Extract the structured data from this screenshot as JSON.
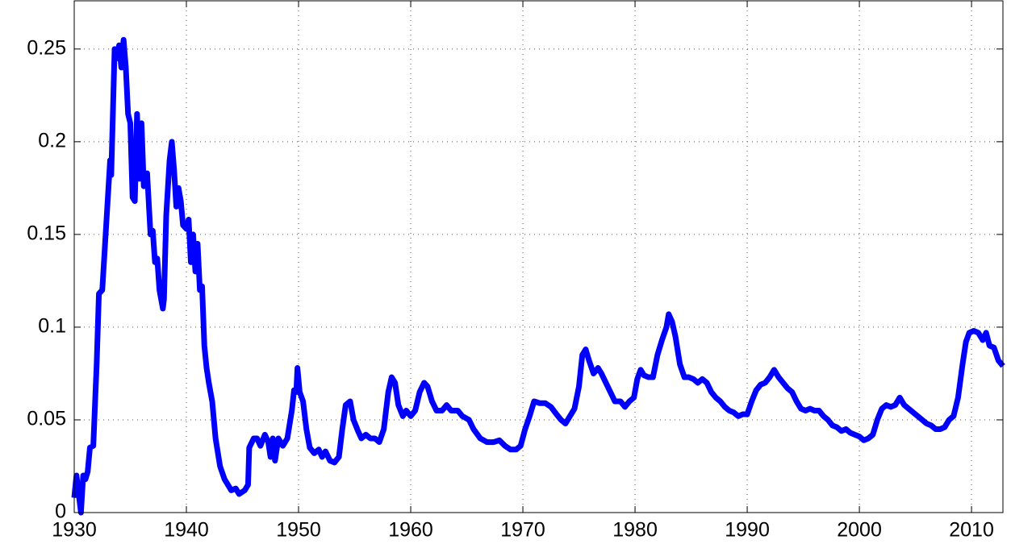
{
  "chart_data": {
    "type": "line",
    "x": [
      1930.0,
      1930.2,
      1930.4,
      1930.6,
      1930.8,
      1931.0,
      1931.2,
      1931.4,
      1931.7,
      1932.0,
      1932.2,
      1932.5,
      1932.8,
      1933.0,
      1933.2,
      1933.3,
      1933.6,
      1933.8,
      1934.0,
      1934.2,
      1934.4,
      1934.6,
      1934.8,
      1935.0,
      1935.2,
      1935.4,
      1935.6,
      1935.8,
      1936.0,
      1936.2,
      1936.5,
      1936.8,
      1937.0,
      1937.2,
      1937.4,
      1937.6,
      1937.9,
      1938.0,
      1938.2,
      1938.5,
      1938.7,
      1938.9,
      1939.1,
      1939.3,
      1939.5,
      1939.7,
      1940.0,
      1940.2,
      1940.4,
      1940.6,
      1940.8,
      1941.0,
      1941.2,
      1941.4,
      1941.6,
      1941.8,
      1942.0,
      1942.3,
      1942.6,
      1943.0,
      1943.4,
      1944.0,
      1944.4,
      1944.7,
      1945.2,
      1945.5,
      1945.6,
      1946.0,
      1946.3,
      1946.6,
      1947.0,
      1947.3,
      1947.5,
      1947.7,
      1947.9,
      1948.2,
      1948.6,
      1949.0,
      1949.4,
      1949.6,
      1949.8,
      1949.9,
      1950.1,
      1950.4,
      1950.7,
      1951.0,
      1951.4,
      1951.8,
      1952.1,
      1952.4,
      1952.8,
      1953.2,
      1953.6,
      1953.9,
      1954.2,
      1954.6,
      1954.9,
      1955.3,
      1955.6,
      1956.0,
      1956.4,
      1956.8,
      1957.2,
      1957.6,
      1958.0,
      1958.3,
      1958.6,
      1958.9,
      1959.3,
      1959.6,
      1960.0,
      1960.4,
      1960.8,
      1961.2,
      1961.5,
      1961.9,
      1962.3,
      1962.8,
      1963.2,
      1963.6,
      1964.2,
      1964.6,
      1965.2,
      1965.6,
      1966.2,
      1966.8,
      1967.4,
      1967.9,
      1968.4,
      1968.9,
      1969.4,
      1969.8,
      1970.2,
      1970.6,
      1971.0,
      1971.5,
      1972.0,
      1972.5,
      1973.0,
      1973.4,
      1973.8,
      1974.2,
      1974.6,
      1975.0,
      1975.3,
      1975.6,
      1975.9,
      1976.3,
      1976.7,
      1977.0,
      1977.4,
      1977.8,
      1978.2,
      1978.7,
      1979.1,
      1979.5,
      1979.9,
      1980.2,
      1980.5,
      1980.8,
      1981.2,
      1981.6,
      1982.0,
      1982.4,
      1982.8,
      1983.0,
      1983.3,
      1983.6,
      1984.0,
      1984.4,
      1984.8,
      1985.2,
      1985.6,
      1986.0,
      1986.4,
      1986.8,
      1987.2,
      1987.6,
      1988.0,
      1988.4,
      1988.8,
      1989.2,
      1989.6,
      1990.0,
      1990.4,
      1990.8,
      1991.2,
      1991.6,
      1992.0,
      1992.4,
      1992.8,
      1993.2,
      1993.6,
      1994.0,
      1994.4,
      1994.8,
      1995.2,
      1995.6,
      1996.0,
      1996.4,
      1996.8,
      1997.2,
      1997.6,
      1998.0,
      1998.4,
      1998.8,
      1999.2,
      1999.6,
      2000.0,
      2000.4,
      2000.8,
      2001.2,
      2001.6,
      2002.0,
      2002.4,
      2002.8,
      2003.2,
      2003.6,
      2004.0,
      2004.4,
      2004.8,
      2005.2,
      2005.6,
      2006.0,
      2006.4,
      2006.8,
      2007.2,
      2007.6,
      2008.0,
      2008.4,
      2008.8,
      2009.2,
      2009.5,
      2009.8,
      2010.2,
      2010.6,
      2011.0,
      2011.3,
      2011.6,
      2012.0,
      2012.4,
      2012.8
    ],
    "values": [
      0.008,
      0.02,
      0.01,
      0.0,
      0.02,
      0.018,
      0.022,
      0.035,
      0.036,
      0.08,
      0.118,
      0.12,
      0.15,
      0.17,
      0.19,
      0.182,
      0.25,
      0.245,
      0.252,
      0.24,
      0.255,
      0.24,
      0.215,
      0.21,
      0.17,
      0.168,
      0.215,
      0.18,
      0.21,
      0.176,
      0.183,
      0.15,
      0.152,
      0.135,
      0.137,
      0.12,
      0.11,
      0.115,
      0.16,
      0.19,
      0.2,
      0.185,
      0.165,
      0.175,
      0.168,
      0.155,
      0.153,
      0.158,
      0.135,
      0.15,
      0.13,
      0.145,
      0.12,
      0.122,
      0.09,
      0.078,
      0.07,
      0.06,
      0.04,
      0.025,
      0.018,
      0.012,
      0.013,
      0.01,
      0.012,
      0.015,
      0.035,
      0.04,
      0.04,
      0.036,
      0.042,
      0.038,
      0.03,
      0.04,
      0.028,
      0.04,
      0.036,
      0.04,
      0.055,
      0.066,
      0.065,
      0.078,
      0.065,
      0.06,
      0.045,
      0.035,
      0.032,
      0.034,
      0.03,
      0.033,
      0.028,
      0.027,
      0.03,
      0.045,
      0.058,
      0.06,
      0.05,
      0.044,
      0.04,
      0.042,
      0.04,
      0.04,
      0.038,
      0.045,
      0.065,
      0.073,
      0.07,
      0.058,
      0.052,
      0.055,
      0.052,
      0.055,
      0.065,
      0.07,
      0.068,
      0.06,
      0.055,
      0.055,
      0.058,
      0.055,
      0.055,
      0.052,
      0.05,
      0.045,
      0.04,
      0.038,
      0.038,
      0.039,
      0.036,
      0.034,
      0.034,
      0.036,
      0.045,
      0.052,
      0.06,
      0.059,
      0.059,
      0.057,
      0.053,
      0.05,
      0.048,
      0.052,
      0.056,
      0.068,
      0.085,
      0.088,
      0.082,
      0.075,
      0.078,
      0.075,
      0.07,
      0.065,
      0.06,
      0.06,
      0.057,
      0.06,
      0.062,
      0.072,
      0.077,
      0.074,
      0.073,
      0.073,
      0.085,
      0.093,
      0.1,
      0.107,
      0.103,
      0.095,
      0.08,
      0.073,
      0.073,
      0.072,
      0.07,
      0.072,
      0.07,
      0.065,
      0.062,
      0.06,
      0.057,
      0.055,
      0.054,
      0.052,
      0.053,
      0.053,
      0.06,
      0.066,
      0.069,
      0.07,
      0.073,
      0.077,
      0.073,
      0.07,
      0.067,
      0.065,
      0.06,
      0.056,
      0.055,
      0.056,
      0.055,
      0.055,
      0.052,
      0.05,
      0.047,
      0.046,
      0.044,
      0.045,
      0.043,
      0.042,
      0.041,
      0.039,
      0.04,
      0.042,
      0.05,
      0.056,
      0.058,
      0.057,
      0.058,
      0.062,
      0.058,
      0.056,
      0.054,
      0.052,
      0.05,
      0.048,
      0.047,
      0.045,
      0.045,
      0.046,
      0.05,
      0.052,
      0.062,
      0.08,
      0.092,
      0.097,
      0.098,
      0.097,
      0.093,
      0.097,
      0.09,
      0.089,
      0.082,
      0.079
    ],
    "color": "#0000ff",
    "xlim": [
      1930,
      2012.8
    ],
    "ylim": [
      0,
      0.276
    ],
    "xticks": [
      1930,
      1940,
      1950,
      1960,
      1970,
      1980,
      1990,
      2000,
      2010
    ],
    "yticks": [
      0,
      0.05,
      0.1,
      0.15,
      0.2,
      0.25
    ],
    "grid": true
  }
}
